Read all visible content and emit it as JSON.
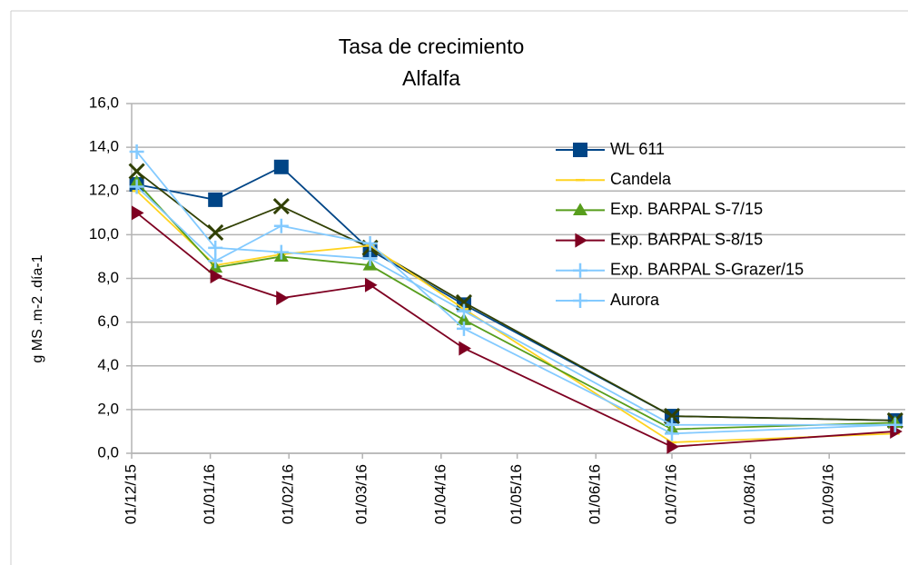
{
  "chart_data": {
    "type": "line",
    "title": "Tasa de crecimiento",
    "subtitle": "Alfalfa",
    "y_label": "g MS .m-2 .día-1",
    "x": [
      "2015-12-03",
      "2016-01-03",
      "2016-01-29",
      "2016-03-04",
      "2016-04-10",
      "2016-07-01",
      "2016-09-27"
    ],
    "xlim": [
      "2015-12-01",
      "2016-10-01"
    ],
    "xticks": [
      {
        "value": "2015-12-01",
        "label": "01/12/15"
      },
      {
        "value": "2016-01-01",
        "label": "01/01/16"
      },
      {
        "value": "2016-02-01",
        "label": "01/02/16"
      },
      {
        "value": "2016-03-01",
        "label": "01/03/16"
      },
      {
        "value": "2016-04-01",
        "label": "01/04/16"
      },
      {
        "value": "2016-05-01",
        "label": "01/05/16"
      },
      {
        "value": "2016-06-01",
        "label": "01/06/16"
      },
      {
        "value": "2016-07-01",
        "label": "01/07/16"
      },
      {
        "value": "2016-08-01",
        "label": "01/08/16"
      },
      {
        "value": "2016-09-01",
        "label": "01/09/16"
      }
    ],
    "ylim": [
      0,
      16
    ],
    "yticks": [
      {
        "value": 0,
        "label": "0,0"
      },
      {
        "value": 2,
        "label": "2,0"
      },
      {
        "value": 4,
        "label": "4,0"
      },
      {
        "value": 6,
        "label": "6,0"
      },
      {
        "value": 8,
        "label": "8,0"
      },
      {
        "value": 10,
        "label": "10,0"
      },
      {
        "value": 12,
        "label": "12,0"
      },
      {
        "value": 14,
        "label": "14,0"
      },
      {
        "value": 16,
        "label": "16,0"
      }
    ],
    "grid": true,
    "legend": "right",
    "series": [
      {
        "name": "WL 611",
        "color": "#004586",
        "marker": "square",
        "values": [
          12.3,
          11.6,
          13.1,
          9.3,
          6.8,
          1.7,
          1.5
        ]
      },
      {
        "color": "#314004",
        "marker": "x",
        "values": [
          12.9,
          10.1,
          11.3,
          9.4,
          6.9,
          1.7,
          1.5
        ]
      },
      {
        "name": "Candela",
        "color": "#ffd320",
        "marker": "dash",
        "values": [
          12.0,
          8.6,
          9.1,
          9.5,
          6.6,
          0.5,
          0.9
        ]
      },
      {
        "name": "Exp. BARPAL S-7/15",
        "color": "#579d1c",
        "marker": "triangle",
        "values": [
          12.4,
          8.5,
          9.0,
          8.6,
          6.1,
          1.1,
          1.4
        ]
      },
      {
        "name": "Exp. BARPAL S-8/15",
        "color": "#7e0021",
        "marker": "right-triangle",
        "values": [
          11.0,
          8.1,
          7.1,
          7.7,
          4.8,
          0.3,
          1.0
        ]
      },
      {
        "name": "Exp. BARPAL S-Grazer/15",
        "color": "#83caff",
        "marker": "plus",
        "values": [
          13.8,
          9.4,
          9.2,
          8.9,
          6.5,
          1.3,
          1.3
        ]
      },
      {
        "name": "Aurora",
        "color": "#83caff",
        "marker": "plus",
        "values": [
          12.2,
          8.8,
          10.4,
          9.6,
          5.7,
          0.9,
          1.3
        ]
      }
    ]
  }
}
